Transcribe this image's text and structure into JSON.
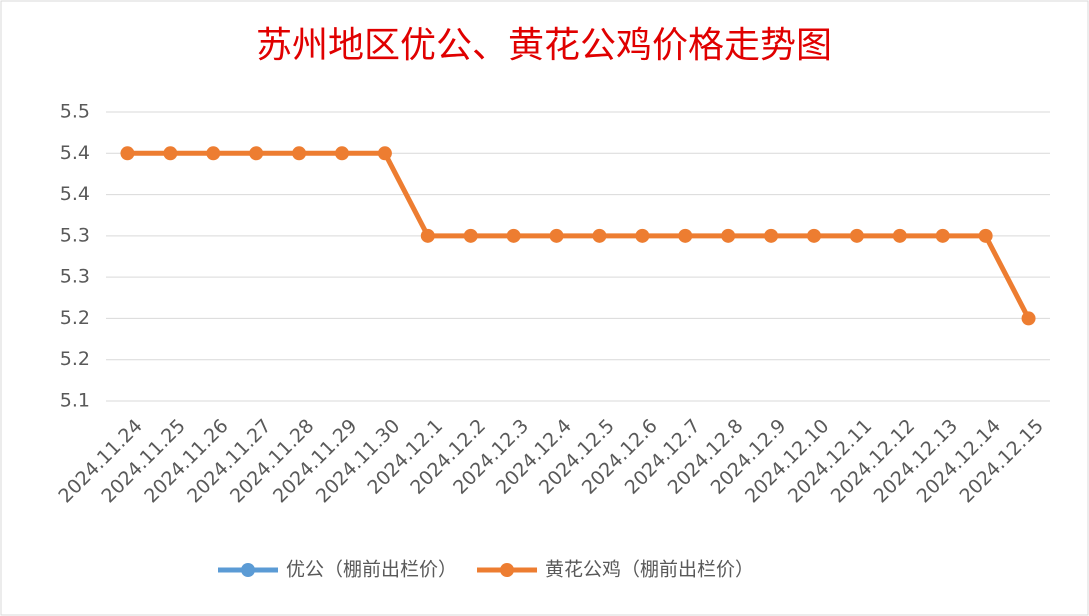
{
  "chart_data": {
    "type": "line",
    "title": "苏州地区优公、黄花公鸡价格走势图",
    "categories": [
      "2024.11.24",
      "2024.11.25",
      "2024.11.26",
      "2024.11.27",
      "2024.11.28",
      "2024.11.29",
      "2024.11.30",
      "2024.12.1",
      "2024.12.2",
      "2024.12.3",
      "2024.12.4",
      "2024.12.5",
      "2024.12.6",
      "2024.12.7",
      "2024.12.8",
      "2024.12.9",
      "2024.12.10",
      "2024.12.11",
      "2024.12.12",
      "2024.12.13",
      "2024.12.14",
      "2024.12.15"
    ],
    "series": [
      {
        "name": "优公（棚前出栏价）",
        "color": "#5b9bd5",
        "values": [
          null,
          null,
          null,
          null,
          null,
          null,
          null,
          null,
          null,
          null,
          null,
          null,
          null,
          null,
          null,
          null,
          null,
          null,
          null,
          null,
          null,
          null
        ]
      },
      {
        "name": "黄花公鸡（棚前出栏价）",
        "color": "#ed7d31",
        "values": [
          5.4,
          5.4,
          5.4,
          5.4,
          5.4,
          5.4,
          5.4,
          5.3,
          5.3,
          5.3,
          5.3,
          5.3,
          5.3,
          5.3,
          5.3,
          5.3,
          5.3,
          5.3,
          5.3,
          5.3,
          5.3,
          5.2
        ]
      }
    ],
    "ylim": [
      5.1,
      5.45
    ],
    "yticks": [
      5.1,
      {
        "value": 5.15,
        "label": "5.2"
      },
      5.2,
      {
        "value": 5.25,
        "label": "5.3"
      },
      5.3,
      {
        "value": 5.35,
        "label": "5.4"
      },
      5.4,
      {
        "value": 5.45,
        "label": "5.5"
      }
    ],
    "grid": true,
    "legend": "bottom"
  }
}
